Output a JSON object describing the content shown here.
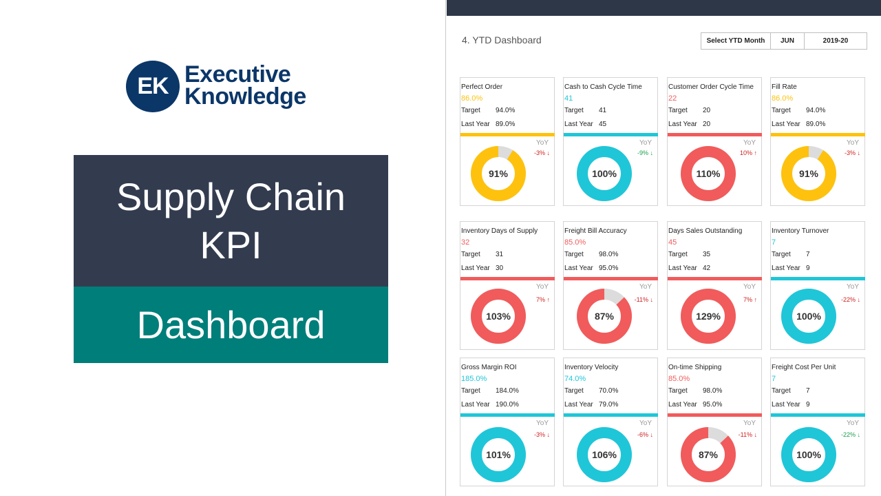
{
  "brand": {
    "initials": "EK",
    "line1": "Executive",
    "line2": "Knowledge"
  },
  "title": {
    "line1": "Supply Chain",
    "line2": "KPI",
    "subtitle": "Dashboard"
  },
  "dashboard": {
    "heading": "4. YTD Dashboard",
    "selector": {
      "label": "Select YTD Month",
      "month": "JUN",
      "year": "2019-20"
    }
  },
  "colors": {
    "yellow": "#fec20e",
    "teal": "#1fc6d8",
    "red": "#f15b5b",
    "grey": "#dcdcdc",
    "dark": "#333c4f",
    "green": "#007e7a"
  },
  "labels": {
    "target": "Target",
    "last_year": "Last Year",
    "yoy": "YoY"
  },
  "kpis": [
    {
      "name": "Perfect Order",
      "actual": "86.0%",
      "target": "94.0%",
      "last_year": "89.0%",
      "yoy": "-3% ↓",
      "yoy_good": false,
      "pct_label": "91%",
      "pct": 0.91,
      "color": "yellow"
    },
    {
      "name": "Cash to Cash Cycle Time",
      "actual": "41",
      "target": "41",
      "last_year": "45",
      "yoy": "-9% ↓",
      "yoy_good": true,
      "pct_label": "100%",
      "pct": 1.0,
      "color": "teal"
    },
    {
      "name": "Customer Order Cycle Time",
      "actual": "22",
      "target": "20",
      "last_year": "20",
      "yoy": "10% ↑",
      "yoy_good": false,
      "pct_label": "110%",
      "pct": 1.0,
      "color": "red"
    },
    {
      "name": "Fill Rate",
      "actual": "86.0%",
      "target": "94.0%",
      "last_year": "89.0%",
      "yoy": "-3% ↓",
      "yoy_good": false,
      "pct_label": "91%",
      "pct": 0.91,
      "color": "yellow"
    },
    {
      "name": "Inventory Days of Supply",
      "actual": "32",
      "target": "31",
      "last_year": "30",
      "yoy": "7% ↑",
      "yoy_good": false,
      "pct_label": "103%",
      "pct": 1.0,
      "color": "red"
    },
    {
      "name": "Freight Bill Accuracy",
      "actual": "85.0%",
      "target": "98.0%",
      "last_year": "95.0%",
      "yoy": "-11% ↓",
      "yoy_good": false,
      "pct_label": "87%",
      "pct": 0.87,
      "color": "red"
    },
    {
      "name": "Days Sales Outstanding",
      "actual": "45",
      "target": "35",
      "last_year": "42",
      "yoy": "7% ↑",
      "yoy_good": false,
      "pct_label": "129%",
      "pct": 1.0,
      "color": "red"
    },
    {
      "name": "Inventory Turnover",
      "actual": "7",
      "target": "7",
      "last_year": "9",
      "yoy": "-22% ↓",
      "yoy_good": false,
      "pct_label": "100%",
      "pct": 1.0,
      "color": "teal"
    },
    {
      "name": "Gross Margin ROI",
      "actual": "185.0%",
      "target": "184.0%",
      "last_year": "190.0%",
      "yoy": "-3% ↓",
      "yoy_good": false,
      "pct_label": "101%",
      "pct": 1.0,
      "color": "teal"
    },
    {
      "name": "Inventory Velocity",
      "actual": "74.0%",
      "target": "70.0%",
      "last_year": "79.0%",
      "yoy": "-6% ↓",
      "yoy_good": false,
      "pct_label": "106%",
      "pct": 1.0,
      "color": "teal"
    },
    {
      "name": "On-time Shipping",
      "actual": "85.0%",
      "target": "98.0%",
      "last_year": "95.0%",
      "yoy": "-11% ↓",
      "yoy_good": false,
      "pct_label": "87%",
      "pct": 0.87,
      "color": "red"
    },
    {
      "name": "Freight Cost Per Unit",
      "actual": "7",
      "target": "7",
      "last_year": "9",
      "yoy": "-22% ↓",
      "yoy_good": true,
      "pct_label": "100%",
      "pct": 1.0,
      "color": "teal"
    }
  ]
}
